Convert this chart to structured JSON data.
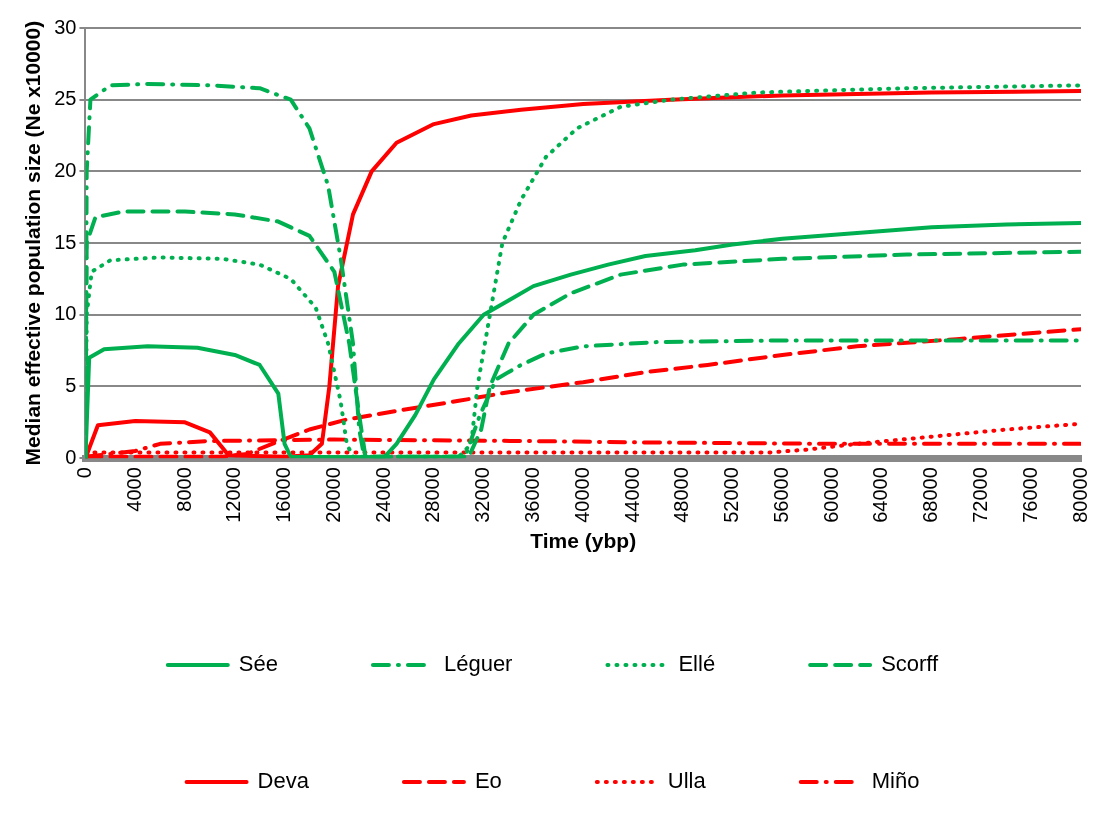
{
  "chart_data": {
    "type": "line",
    "xlabel": "Time (ybp)",
    "ylabel": "Median effective population size (Ne x10000)",
    "xlim": [
      0,
      80000
    ],
    "xticks": [
      0,
      4000,
      8000,
      12000,
      16000,
      20000,
      24000,
      28000,
      32000,
      36000,
      40000,
      44000,
      48000,
      52000,
      56000,
      60000,
      64000,
      68000,
      72000,
      76000,
      80000
    ],
    "ylim": [
      0,
      30
    ],
    "yticks": [
      0,
      5,
      10,
      15,
      20,
      25,
      30
    ],
    "grid": "y",
    "legend": "bottom",
    "marker": "none",
    "series": [
      {
        "name": "Sée",
        "color": "#00b050",
        "line_style": "solid",
        "x": [
          0,
          300,
          1500,
          5000,
          9000,
          12000,
          14000,
          15500,
          16000,
          16500,
          24000,
          25000,
          26500,
          28000,
          30000,
          32000,
          34000,
          36000,
          39000,
          42000,
          45000,
          49000,
          52000,
          56000,
          62000,
          68000,
          74000,
          80000
        ],
        "values": [
          0,
          7,
          7.6,
          7.8,
          7.7,
          7.2,
          6.5,
          4.5,
          1,
          0.1,
          0.05,
          1,
          3,
          5.5,
          8,
          10,
          11,
          12,
          12.8,
          13.5,
          14.1,
          14.5,
          14.9,
          15.3,
          15.7,
          16.1,
          16.3,
          16.4
        ]
      },
      {
        "name": "Léguer",
        "color": "#00b050",
        "line_style": "dashdot",
        "x": [
          0,
          100,
          400,
          2000,
          5000,
          10000,
          14000,
          16500,
          18000,
          19500,
          20500,
          21500,
          22000,
          22400,
          30500,
          31700,
          33000,
          35000,
          37000,
          40000,
          46000,
          55000,
          80000
        ],
        "values": [
          0,
          20,
          25,
          26,
          26.1,
          26,
          25.8,
          25,
          23,
          19,
          14,
          8,
          2,
          0.1,
          0.1,
          3,
          5.5,
          6.5,
          7.3,
          7.8,
          8.1,
          8.2,
          8.2
        ]
      },
      {
        "name": "Ellé",
        "color": "#00b050",
        "line_style": "dotted",
        "x": [
          0,
          100,
          500,
          2000,
          6000,
          11000,
          14000,
          16500,
          18500,
          19500,
          20500,
          21000,
          21500,
          30000,
          31000,
          31500,
          32500,
          33500,
          35000,
          37000,
          39500,
          43000,
          47000,
          54000,
          66000,
          80000
        ],
        "values": [
          0,
          10,
          13,
          13.8,
          14,
          13.9,
          13.5,
          12.5,
          10.5,
          8,
          4,
          1,
          0.1,
          0.1,
          1,
          5,
          10,
          15,
          18,
          21,
          23,
          24.5,
          25,
          25.5,
          25.8,
          26
        ]
      },
      {
        "name": "Scorff",
        "color": "#00b050",
        "line_style": "dashed",
        "x": [
          0,
          100,
          800,
          3000,
          8000,
          12000,
          15500,
          18000,
          20000,
          21200,
          22000,
          22500,
          30800,
          31800,
          32500,
          34000,
          36000,
          39000,
          43000,
          48000,
          56000,
          66000,
          80000
        ],
        "values": [
          0,
          15,
          16.8,
          17.2,
          17.2,
          17,
          16.5,
          15.5,
          13,
          8,
          3,
          0.1,
          0.1,
          2,
          5,
          8,
          10,
          11.5,
          12.8,
          13.5,
          13.9,
          14.2,
          14.4
        ]
      },
      {
        "name": "Deva",
        "color": "#ff0000",
        "line_style": "solid",
        "x": [
          0,
          1000,
          4000,
          8000,
          10000,
          11500,
          16000,
          18000,
          19000,
          19600,
          20300,
          21500,
          23000,
          25000,
          28000,
          31000,
          35000,
          40000,
          47000,
          56000,
          68000,
          80000
        ],
        "values": [
          0,
          2.3,
          2.6,
          2.5,
          1.8,
          0.2,
          0.1,
          0.2,
          1,
          5,
          12,
          17,
          20,
          22,
          23.3,
          23.9,
          24.3,
          24.7,
          25,
          25.3,
          25.5,
          25.6
        ]
      },
      {
        "name": "Eo",
        "color": "#ff0000",
        "line_style": "dashed",
        "x": [
          0,
          11000,
          13000,
          15000,
          18000,
          21000,
          25000,
          30000,
          34000,
          40000,
          45000,
          50000,
          56000,
          62000,
          70000,
          80000
        ],
        "values": [
          0.1,
          0.1,
          0.3,
          1,
          2,
          2.7,
          3.3,
          4,
          4.6,
          5.3,
          6,
          6.5,
          7.2,
          7.8,
          8.3,
          9
        ]
      },
      {
        "name": "Ulla",
        "color": "#ff0000",
        "line_style": "dotted",
        "x": [
          0,
          55000,
          58000,
          62000,
          68000,
          74000,
          80000
        ],
        "values": [
          0.4,
          0.4,
          0.6,
          1,
          1.5,
          2,
          2.4
        ]
      },
      {
        "name": "Miño",
        "color": "#ff0000",
        "line_style": "dashdot",
        "x": [
          0,
          4000,
          6000,
          10000,
          20000,
          35000,
          45000,
          60000,
          80000
        ],
        "values": [
          0.1,
          0.5,
          1,
          1.2,
          1.3,
          1.2,
          1.1,
          1,
          1
        ]
      }
    ]
  }
}
